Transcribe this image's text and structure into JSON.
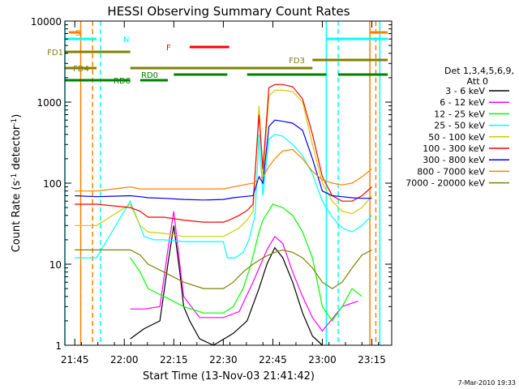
{
  "chart_data": {
    "type": "line",
    "title": "HESSI Observing Summary Count Rates",
    "xlabel": "Start Time (13-Nov-03 21:41:42)",
    "ylabel": "Count Rate (s⁻¹ detector⁻¹)",
    "ylabel_parts": [
      "Count Rate (s",
      "-1",
      " detector",
      "-1",
      ")"
    ],
    "yscale": "log",
    "ylim": [
      1,
      10000
    ],
    "xlim_minutes": [
      21.7,
      23.35
    ],
    "x_ticks": [
      {
        "t": 21.75,
        "label": "21:45"
      },
      {
        "t": 22.0,
        "label": "22:00"
      },
      {
        "t": 22.25,
        "label": "22:15"
      },
      {
        "t": 22.5,
        "label": "22:30"
      },
      {
        "t": 22.75,
        "label": "22:45"
      },
      {
        "t": 23.0,
        "label": "23:00"
      },
      {
        "t": 23.25,
        "label": "23:15"
      }
    ],
    "y_ticks": [
      {
        "v": 1,
        "label": "1"
      },
      {
        "v": 10,
        "label": "10"
      },
      {
        "v": 100,
        "label": "100"
      },
      {
        "v": 1000,
        "label": "1000"
      },
      {
        "v": 10000,
        "label": "10000"
      }
    ],
    "legend_title": [
      "Det 1,3,4,5,6,9,",
      "Att 0"
    ],
    "legend_placement": "right",
    "footer_date": "7-Mar-2010 19:33",
    "series": [
      {
        "name": "3 - 6 keV",
        "color": "#000000",
        "points": [
          [
            22.03,
            1.2
          ],
          [
            22.1,
            1.6
          ],
          [
            22.18,
            2
          ],
          [
            22.22,
            10
          ],
          [
            22.25,
            30
          ],
          [
            22.28,
            8
          ],
          [
            22.3,
            3
          ],
          [
            22.33,
            2
          ],
          [
            22.38,
            1.2
          ],
          [
            22.45,
            1
          ],
          [
            22.55,
            1.4
          ],
          [
            22.62,
            2
          ],
          [
            22.68,
            5
          ],
          [
            22.72,
            10
          ],
          [
            22.76,
            16
          ],
          [
            22.8,
            12
          ],
          [
            22.85,
            6
          ],
          [
            22.9,
            2.5
          ],
          [
            22.95,
            1.3
          ],
          [
            23.0,
            1
          ]
        ]
      },
      {
        "name": "6 - 12 keV",
        "color": "#ff00ff",
        "points": [
          [
            22.03,
            2.8
          ],
          [
            22.1,
            2.8
          ],
          [
            22.18,
            3
          ],
          [
            22.22,
            15
          ],
          [
            22.25,
            45
          ],
          [
            22.28,
            10
          ],
          [
            22.3,
            4
          ],
          [
            22.38,
            2.2
          ],
          [
            22.5,
            2.2
          ],
          [
            22.58,
            2.6
          ],
          [
            22.65,
            6
          ],
          [
            22.72,
            15
          ],
          [
            22.76,
            22
          ],
          [
            22.8,
            18
          ],
          [
            22.85,
            8
          ],
          [
            22.9,
            4
          ],
          [
            22.95,
            2.2
          ],
          [
            23.0,
            1.5
          ],
          [
            23.1,
            3
          ],
          [
            23.18,
            3.5
          ]
        ]
      },
      {
        "name": "12 - 25 keV",
        "color": "#00ff00",
        "points": [
          [
            22.03,
            12
          ],
          [
            22.08,
            8
          ],
          [
            22.12,
            5
          ],
          [
            22.2,
            4
          ],
          [
            22.3,
            3
          ],
          [
            22.4,
            2.5
          ],
          [
            22.5,
            2.5
          ],
          [
            22.55,
            3
          ],
          [
            22.6,
            5
          ],
          [
            22.64,
            10
          ],
          [
            22.68,
            25
          ],
          [
            22.7,
            35
          ],
          [
            22.75,
            55
          ],
          [
            22.8,
            50
          ],
          [
            22.85,
            40
          ],
          [
            22.9,
            25
          ],
          [
            22.95,
            12
          ],
          [
            23.0,
            3
          ],
          [
            23.05,
            2
          ],
          [
            23.1,
            3
          ],
          [
            23.15,
            5
          ],
          [
            23.2,
            4
          ]
        ]
      },
      {
        "name": "25 - 50 keV",
        "color": "#00ffff",
        "points": [
          [
            21.75,
            12
          ],
          [
            21.86,
            12
          ],
          [
            22.03,
            60
          ],
          [
            22.1,
            22
          ],
          [
            22.15,
            20
          ],
          [
            22.2,
            20
          ],
          [
            22.3,
            19
          ],
          [
            22.4,
            19
          ],
          [
            22.5,
            19
          ],
          [
            22.52,
            12
          ],
          [
            22.56,
            12
          ],
          [
            22.6,
            14
          ],
          [
            22.63,
            20
          ],
          [
            22.66,
            40
          ],
          [
            22.68,
            400
          ],
          [
            22.7,
            70
          ],
          [
            22.73,
            350
          ],
          [
            22.76,
            400
          ],
          [
            22.8,
            380
          ],
          [
            22.85,
            300
          ],
          [
            22.9,
            220
          ],
          [
            22.95,
            130
          ],
          [
            23.0,
            60
          ],
          [
            23.05,
            38
          ],
          [
            23.1,
            28
          ],
          [
            23.15,
            25
          ],
          [
            23.2,
            30
          ],
          [
            23.25,
            40
          ]
        ]
      },
      {
        "name": "50 - 100 keV",
        "color": "#cccc00",
        "points": [
          [
            21.75,
            30
          ],
          [
            21.86,
            30
          ],
          [
            22.03,
            55
          ],
          [
            22.08,
            30
          ],
          [
            22.12,
            25
          ],
          [
            22.2,
            24
          ],
          [
            22.3,
            22
          ],
          [
            22.4,
            22
          ],
          [
            22.5,
            22
          ],
          [
            22.53,
            24
          ],
          [
            22.58,
            28
          ],
          [
            22.62,
            35
          ],
          [
            22.65,
            45
          ],
          [
            22.68,
            900
          ],
          [
            22.7,
            120
          ],
          [
            22.73,
            1200
          ],
          [
            22.76,
            1400
          ],
          [
            22.8,
            1400
          ],
          [
            22.85,
            1350
          ],
          [
            22.9,
            1000
          ],
          [
            22.95,
            300
          ],
          [
            23.0,
            100
          ],
          [
            23.05,
            60
          ],
          [
            23.1,
            45
          ],
          [
            23.15,
            42
          ],
          [
            23.2,
            50
          ],
          [
            23.25,
            70
          ]
        ]
      },
      {
        "name": "100 - 300 keV",
        "color": "#ff0000",
        "points": [
          [
            21.75,
            55
          ],
          [
            21.86,
            55
          ],
          [
            22.03,
            50
          ],
          [
            22.08,
            45
          ],
          [
            22.12,
            38
          ],
          [
            22.2,
            38
          ],
          [
            22.3,
            35
          ],
          [
            22.4,
            33
          ],
          [
            22.5,
            33
          ],
          [
            22.53,
            35
          ],
          [
            22.58,
            40
          ],
          [
            22.62,
            46
          ],
          [
            22.65,
            55
          ],
          [
            22.68,
            700
          ],
          [
            22.7,
            150
          ],
          [
            22.73,
            1500
          ],
          [
            22.76,
            1650
          ],
          [
            22.8,
            1650
          ],
          [
            22.85,
            1550
          ],
          [
            22.9,
            1100
          ],
          [
            22.95,
            400
          ],
          [
            23.0,
            120
          ],
          [
            23.05,
            70
          ],
          [
            23.1,
            60
          ],
          [
            23.15,
            60
          ],
          [
            23.2,
            70
          ],
          [
            23.25,
            90
          ]
        ]
      },
      {
        "name": "300 - 800 keV",
        "color": "#0000ff",
        "points": [
          [
            21.75,
            70
          ],
          [
            21.86,
            68
          ],
          [
            22.03,
            70
          ],
          [
            22.08,
            68
          ],
          [
            22.12,
            66
          ],
          [
            22.2,
            65
          ],
          [
            22.3,
            63
          ],
          [
            22.4,
            62
          ],
          [
            22.5,
            63
          ],
          [
            22.55,
            66
          ],
          [
            22.6,
            68
          ],
          [
            22.65,
            70
          ],
          [
            22.68,
            120
          ],
          [
            22.7,
            100
          ],
          [
            22.73,
            500
          ],
          [
            22.76,
            600
          ],
          [
            22.8,
            580
          ],
          [
            22.85,
            550
          ],
          [
            22.9,
            450
          ],
          [
            22.95,
            200
          ],
          [
            23.0,
            80
          ],
          [
            23.05,
            70
          ],
          [
            23.1,
            68
          ],
          [
            23.15,
            66
          ],
          [
            23.2,
            65
          ],
          [
            23.25,
            65
          ]
        ]
      },
      {
        "name": "800 - 7000 keV",
        "color": "#ff8000",
        "points": [
          [
            21.75,
            80
          ],
          [
            21.86,
            80
          ],
          [
            22.03,
            90
          ],
          [
            22.08,
            85
          ],
          [
            22.12,
            85
          ],
          [
            22.2,
            85
          ],
          [
            22.3,
            85
          ],
          [
            22.4,
            85
          ],
          [
            22.5,
            85
          ],
          [
            22.55,
            90
          ],
          [
            22.6,
            95
          ],
          [
            22.65,
            100
          ],
          [
            22.7,
            120
          ],
          [
            22.73,
            160
          ],
          [
            22.76,
            200
          ],
          [
            22.8,
            250
          ],
          [
            22.85,
            260
          ],
          [
            22.9,
            200
          ],
          [
            22.95,
            140
          ],
          [
            23.0,
            110
          ],
          [
            23.05,
            100
          ],
          [
            23.1,
            95
          ],
          [
            23.15,
            100
          ],
          [
            23.2,
            120
          ],
          [
            23.25,
            150
          ]
        ]
      },
      {
        "name": "7000 - 20000 keV",
        "color": "#808000",
        "points": [
          [
            21.75,
            15
          ],
          [
            21.86,
            15
          ],
          [
            22.03,
            15
          ],
          [
            22.08,
            13
          ],
          [
            22.12,
            10
          ],
          [
            22.2,
            8
          ],
          [
            22.3,
            6
          ],
          [
            22.4,
            5
          ],
          [
            22.5,
            5
          ],
          [
            22.55,
            6
          ],
          [
            22.6,
            8
          ],
          [
            22.65,
            10
          ],
          [
            22.7,
            12
          ],
          [
            22.73,
            13
          ],
          [
            22.76,
            14
          ],
          [
            22.8,
            15
          ],
          [
            22.85,
            14
          ],
          [
            22.9,
            12
          ],
          [
            22.95,
            9
          ],
          [
            23.0,
            6
          ],
          [
            23.05,
            5
          ],
          [
            23.1,
            6
          ],
          [
            23.15,
            9
          ],
          [
            23.2,
            13
          ],
          [
            23.25,
            15
          ]
        ]
      }
    ],
    "flag_bars": [
      {
        "label": "S",
        "color": "#ff8000",
        "ranges": [
          [
            21.72,
            21.78
          ],
          [
            23.24,
            23.33
          ]
        ]
      },
      {
        "label": "N",
        "color": "#00ffff",
        "ranges": [
          [
            21.7,
            21.86
          ],
          [
            23.02,
            23.33
          ]
        ]
      },
      {
        "label": "F",
        "color": "#ff0000",
        "ranges": [
          [
            22.33,
            22.53
          ]
        ]
      },
      {
        "label": "FD1",
        "color": "#808000",
        "ranges": [
          [
            21.7,
            22.03
          ]
        ]
      },
      {
        "label": "FD3",
        "color": "#808000",
        "ranges": [
          [
            22.95,
            23.33
          ]
        ]
      },
      {
        "label": "FD4",
        "color": "#808000",
        "ranges": [
          [
            21.7,
            21.86
          ],
          [
            22.03,
            22.95
          ]
        ]
      },
      {
        "label": "RD0",
        "color": "#008000",
        "ranges": [
          [
            22.25,
            22.52
          ],
          [
            22.62,
            23.02
          ],
          [
            23.08,
            23.33
          ]
        ]
      },
      {
        "label": "RD6",
        "color": "#008000",
        "ranges": [
          [
            21.7,
            22.03
          ],
          [
            22.08,
            22.22
          ]
        ]
      }
    ],
    "vlines": [
      {
        "t": 21.7,
        "color": "#00ffff",
        "dash": false
      },
      {
        "t": 21.78,
        "color": "#ff8000",
        "dash": false
      },
      {
        "t": 21.84,
        "color": "#ff8000",
        "dash": true
      },
      {
        "t": 21.88,
        "color": "#00ffff",
        "dash": true
      },
      {
        "t": 23.02,
        "color": "#00ffff",
        "dash": false
      },
      {
        "t": 23.08,
        "color": "#00ffff",
        "dash": true
      },
      {
        "t": 23.24,
        "color": "#ff8000",
        "dash": false
      },
      {
        "t": 23.27,
        "color": "#ff8000",
        "dash": true
      },
      {
        "t": 23.29,
        "color": "#00ffff",
        "dash": false
      }
    ]
  }
}
